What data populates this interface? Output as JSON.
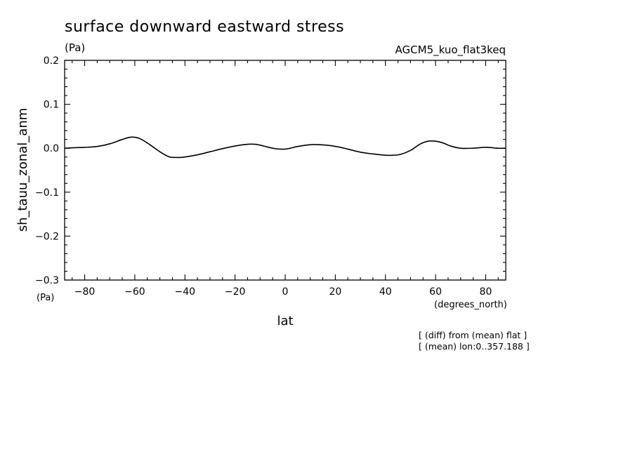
{
  "chart_data": {
    "type": "line",
    "title": "surface downward eastward stress",
    "units": "(Pa)",
    "experiment": "AGCM5_kuo_flat3keq",
    "ylabel": "sh_tauu_zonal_anm",
    "yunits": "(Pa)",
    "xlabel": "lat",
    "xunits": "(degrees_north)",
    "notes": [
      "[ (diff) from (mean) flat ]",
      "[ (mean) lon:0..357.188 ]"
    ],
    "xlim": [
      -88,
      88
    ],
    "ylim": [
      -0.3,
      0.2
    ],
    "xticks": [
      -80,
      -60,
      -40,
      -20,
      0,
      20,
      40,
      60,
      80
    ],
    "xtick_labels": [
      "−80",
      "−60",
      "−40",
      "−20",
      "0",
      "20",
      "40",
      "60",
      "80"
    ],
    "yticks": [
      0.2,
      0.1,
      0.0,
      -0.1,
      -0.2,
      -0.3
    ],
    "ytick_labels": [
      "0.2",
      "0.1",
      "0.0",
      "−0.1",
      "−0.2",
      "−0.3"
    ],
    "grid": false,
    "series": [
      {
        "x": [
          -88,
          -85,
          -80,
          -75,
          -70,
          -65,
          -62,
          -60,
          -58,
          -55,
          -52,
          -50,
          -48,
          -46,
          -44,
          -42,
          -40,
          -35,
          -30,
          -25,
          -20,
          -15,
          -12,
          -10,
          -5,
          -2,
          0,
          2,
          5,
          10,
          14,
          18,
          22,
          25,
          30,
          35,
          40,
          43,
          46,
          50,
          54,
          57,
          60,
          63,
          66,
          70,
          75,
          80,
          85,
          88
        ],
        "y": [
          0.0,
          0.001,
          0.002,
          0.004,
          0.01,
          0.02,
          0.025,
          0.025,
          0.022,
          0.012,
          0.0,
          -0.008,
          -0.015,
          -0.02,
          -0.021,
          -0.021,
          -0.02,
          -0.015,
          -0.008,
          -0.001,
          0.005,
          0.009,
          0.009,
          0.007,
          0.0,
          -0.002,
          -0.002,
          0.0,
          0.004,
          0.008,
          0.008,
          0.006,
          0.002,
          -0.002,
          -0.009,
          -0.013,
          -0.016,
          -0.016,
          -0.014,
          -0.005,
          0.01,
          0.016,
          0.016,
          0.012,
          0.005,
          0.0,
          0.0,
          0.002,
          0.0,
          0.0
        ]
      }
    ]
  }
}
